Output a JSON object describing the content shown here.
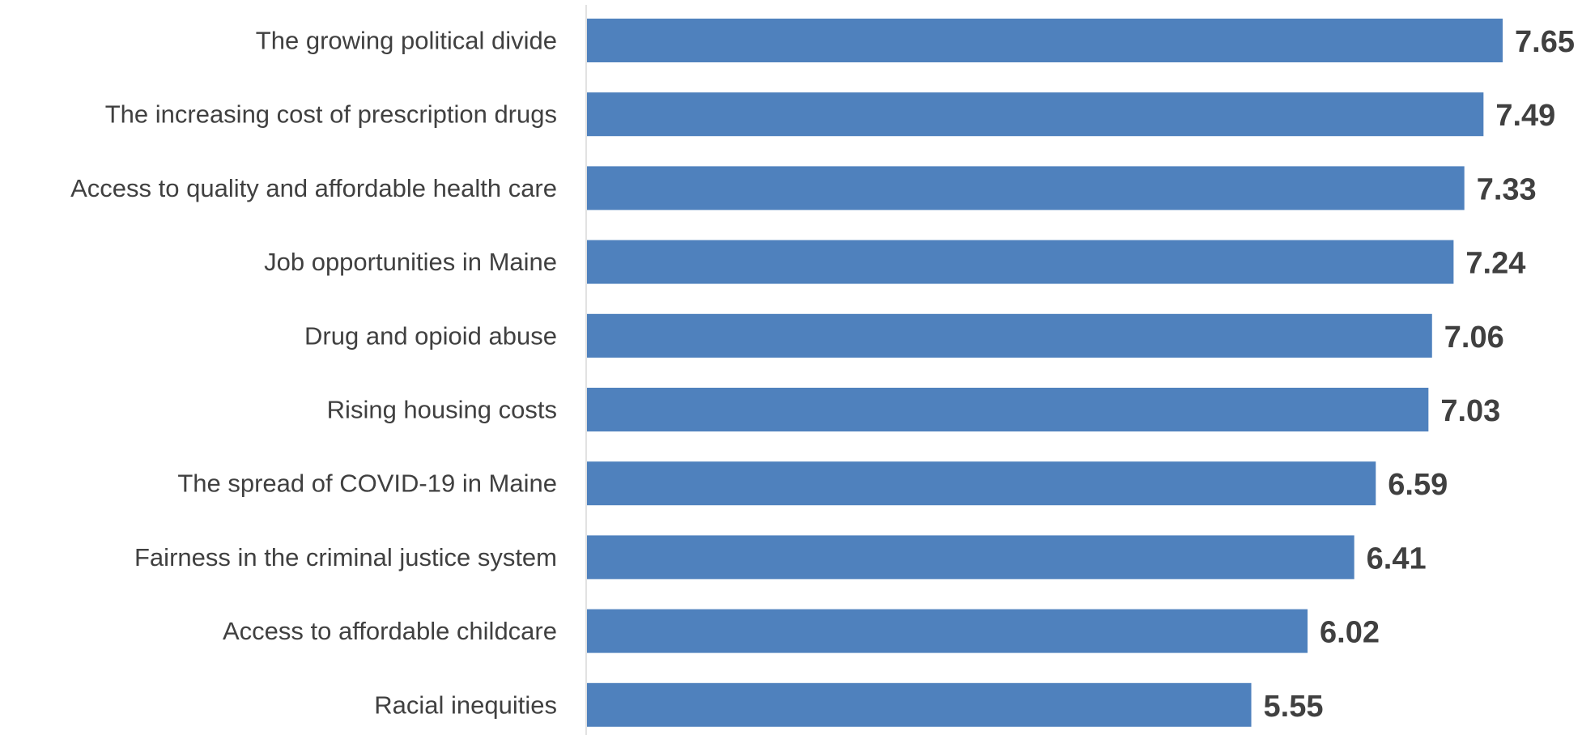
{
  "chart_data": {
    "type": "bar",
    "orientation": "horizontal",
    "categories": [
      "The growing political divide",
      "The increasing cost of prescription drugs",
      "Access to quality and affordable health care",
      "Job opportunities in Maine",
      "Drug and opioid abuse",
      "Rising housing costs",
      "The spread of COVID-19 in Maine",
      "Fairness in the criminal justice system",
      "Access to affordable childcare",
      "Racial inequities"
    ],
    "values": [
      7.65,
      7.49,
      7.33,
      7.24,
      7.06,
      7.03,
      6.59,
      6.41,
      6.02,
      5.55
    ],
    "value_labels": [
      "7.65",
      "7.49",
      "7.33",
      "7.24",
      "7.06",
      "7.03",
      "6.59",
      "6.41",
      "6.02",
      "5.55"
    ],
    "xlim": [
      0,
      7.65
    ],
    "grid": false,
    "legend": "none",
    "colors": {
      "bar": "#4f81bd",
      "axis": "#d9d9d9",
      "text": "#404040"
    }
  }
}
